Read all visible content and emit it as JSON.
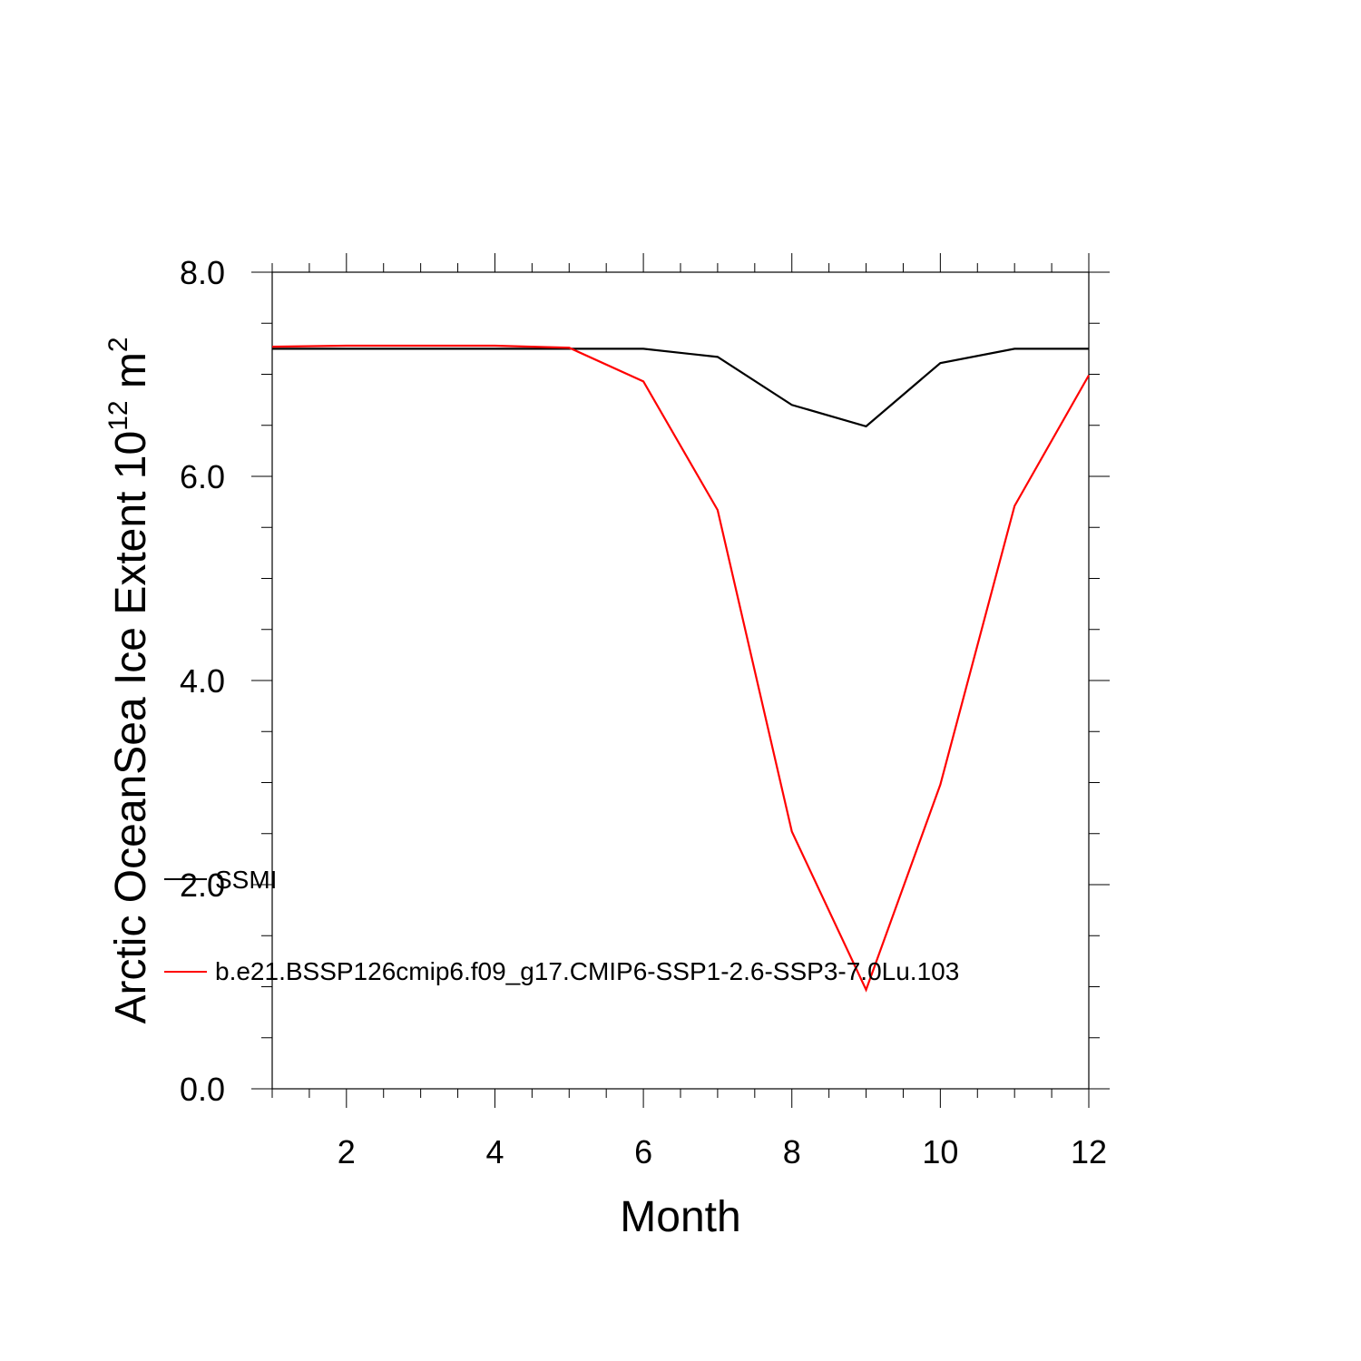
{
  "chart_data": {
    "type": "line",
    "xlabel": "Month",
    "ylabel": {
      "main": "Arctic OceanSea Ice Extent 10",
      "exp1": "12",
      "unit": " m",
      "exp2": "2"
    },
    "xlim": [
      1,
      12
    ],
    "ylim": [
      0,
      8
    ],
    "x_ticks": [
      2,
      4,
      6,
      8,
      10,
      12
    ],
    "x_tick_labels": [
      "2",
      "4",
      "6",
      "8",
      "10",
      "12"
    ],
    "y_ticks": [
      0,
      2,
      4,
      6,
      8
    ],
    "y_tick_labels": [
      "0.0",
      "2.0",
      "4.0",
      "6.0",
      "8.0"
    ],
    "grid": false,
    "legend_position": "bottom-left inside",
    "series": [
      {
        "name": "SSMI",
        "color": "#000000",
        "x": [
          1,
          2,
          3,
          4,
          5,
          6,
          7,
          8,
          9,
          10,
          11,
          12
        ],
        "values": [
          7.25,
          7.25,
          7.25,
          7.25,
          7.25,
          7.25,
          7.17,
          6.7,
          6.49,
          7.11,
          7.25,
          7.25
        ]
      },
      {
        "name": "b.e21.BSSP126cmip6.f09_g17.CMIP6-SSP1-2.6-SSP3-7.0Lu.103",
        "color": "#ff0000",
        "x": [
          1,
          2,
          3,
          4,
          5,
          6,
          7,
          8,
          9,
          10,
          11,
          12
        ],
        "values": [
          7.27,
          7.28,
          7.28,
          7.28,
          7.26,
          6.93,
          5.67,
          2.52,
          0.97,
          2.98,
          5.71,
          6.99
        ]
      }
    ]
  }
}
